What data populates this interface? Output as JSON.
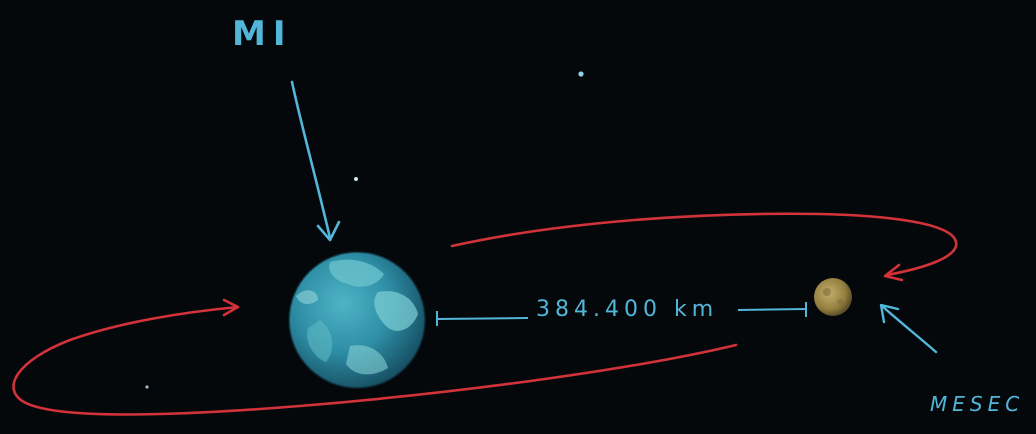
{
  "labels": {
    "earth": "MI",
    "distance": "384.400 km",
    "moon": "MESEC"
  },
  "colors": {
    "background": "#05080b",
    "label": "#52b6d9",
    "orbit": "#d2333a",
    "earth_ocean": "#2f8fa6",
    "earth_land": "#6ec6cf",
    "moon": "#a08a4c"
  },
  "icons": [
    "earth-globe",
    "moon-disc",
    "orbit-arrow",
    "pointer-arrow",
    "star"
  ]
}
